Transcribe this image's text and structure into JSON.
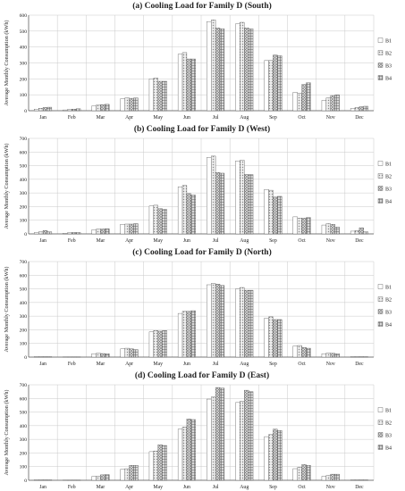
{
  "chart_data": [
    {
      "type": "bar",
      "title": "(a) Cooling Load for Family D (South)",
      "ylabel": "Average Monthly Consumption (kWh)",
      "ylim": [
        0,
        600
      ],
      "yticks": [
        0,
        100,
        200,
        300,
        400,
        500,
        600
      ],
      "grid": true,
      "legend_position": "right",
      "categories": [
        "Jan",
        "Feb",
        "Mar",
        "Apr",
        "May",
        "Jun",
        "Jul",
        "Aug",
        "Sep",
        "Oct",
        "Nov",
        "Dec"
      ],
      "series": [
        {
          "name": "B1",
          "values": [
            10,
            5,
            30,
            75,
            200,
            355,
            560,
            545,
            315,
            115,
            65,
            15
          ]
        },
        {
          "name": "B2",
          "values": [
            15,
            8,
            35,
            80,
            205,
            365,
            570,
            555,
            315,
            110,
            80,
            20
          ]
        },
        {
          "name": "B3",
          "values": [
            20,
            10,
            38,
            78,
            185,
            325,
            520,
            520,
            350,
            165,
            95,
            25
          ]
        },
        {
          "name": "B4",
          "values": [
            22,
            12,
            40,
            80,
            185,
            325,
            515,
            515,
            345,
            175,
            100,
            28
          ]
        }
      ]
    },
    {
      "type": "bar",
      "title": "(b) Cooling Load for Family D (West)",
      "ylabel": "Average Monthly Consumption (kWh)",
      "ylim": [
        0,
        700
      ],
      "yticks": [
        0,
        100,
        200,
        300,
        400,
        500,
        600,
        700
      ],
      "grid": true,
      "legend_position": "right",
      "categories": [
        "Jan",
        "Feb",
        "Mar",
        "Apr",
        "May",
        "Jun",
        "Jul",
        "Aug",
        "Sep",
        "Oct",
        "Nov",
        "Dec"
      ],
      "series": [
        {
          "name": "B1",
          "values": [
            10,
            5,
            30,
            70,
            205,
            345,
            560,
            535,
            325,
            125,
            65,
            20
          ]
        },
        {
          "name": "B2",
          "values": [
            15,
            8,
            35,
            72,
            210,
            355,
            570,
            540,
            320,
            115,
            75,
            25
          ]
        },
        {
          "name": "B3",
          "values": [
            25,
            10,
            36,
            72,
            185,
            295,
            450,
            435,
            270,
            115,
            70,
            45
          ]
        },
        {
          "name": "B4",
          "values": [
            15,
            10,
            38,
            75,
            180,
            285,
            445,
            435,
            275,
            120,
            50,
            15
          ]
        }
      ]
    },
    {
      "type": "bar",
      "title": "(c) Cooling Load for Family D (North)",
      "ylabel": "Average Monthly Consumption (kWh)",
      "ylim": [
        0,
        700
      ],
      "yticks": [
        0,
        100,
        200,
        300,
        400,
        500,
        600,
        700
      ],
      "grid": true,
      "legend_position": "right",
      "categories": [
        "Jan",
        "Feb",
        "Mar",
        "Apr",
        "May",
        "Jun",
        "Jul",
        "Aug",
        "Sep",
        "Oct",
        "Nov",
        "Dec"
      ],
      "series": [
        {
          "name": "B1",
          "values": [
            3,
            2,
            25,
            60,
            185,
            320,
            530,
            500,
            285,
            80,
            25,
            3
          ]
        },
        {
          "name": "B2",
          "values": [
            3,
            2,
            28,
            65,
            195,
            335,
            540,
            510,
            295,
            85,
            30,
            3
          ]
        },
        {
          "name": "B3",
          "values": [
            3,
            2,
            26,
            60,
            190,
            335,
            535,
            490,
            275,
            70,
            28,
            3
          ]
        },
        {
          "name": "B4",
          "values": [
            3,
            2,
            25,
            55,
            195,
            340,
            525,
            490,
            275,
            65,
            25,
            3
          ]
        }
      ]
    },
    {
      "type": "bar",
      "title": "(d) Cooling Load for Family D (East)",
      "ylabel": "Average Monthly Consumption (kWh)",
      "ylim": [
        0,
        700
      ],
      "yticks": [
        0,
        100,
        200,
        300,
        400,
        500,
        600,
        700
      ],
      "grid": true,
      "legend_position": "right",
      "categories": [
        "Jan",
        "Feb",
        "Mar",
        "Apr",
        "May",
        "Jun",
        "Jul",
        "Aug",
        "Sep",
        "Oct",
        "Nov",
        "Dec"
      ],
      "series": [
        {
          "name": "B1",
          "values": [
            3,
            2,
            28,
            80,
            210,
            375,
            595,
            570,
            320,
            85,
            30,
            3
          ]
        },
        {
          "name": "B2",
          "values": [
            3,
            2,
            30,
            85,
            215,
            390,
            610,
            580,
            335,
            95,
            35,
            3
          ]
        },
        {
          "name": "B3",
          "values": [
            3,
            2,
            40,
            110,
            260,
            450,
            680,
            660,
            375,
            115,
            45,
            3
          ]
        },
        {
          "name": "B4",
          "values": [
            3,
            2,
            42,
            110,
            255,
            445,
            675,
            650,
            365,
            110,
            45,
            3
          ]
        }
      ]
    }
  ],
  "colors": {
    "B1": "#ffffff",
    "B2": "#e2e2e2",
    "B3": "#bdbdbd",
    "B4": "#9a9a9a",
    "grid": "#c8c8c8",
    "axis": "#555555"
  }
}
